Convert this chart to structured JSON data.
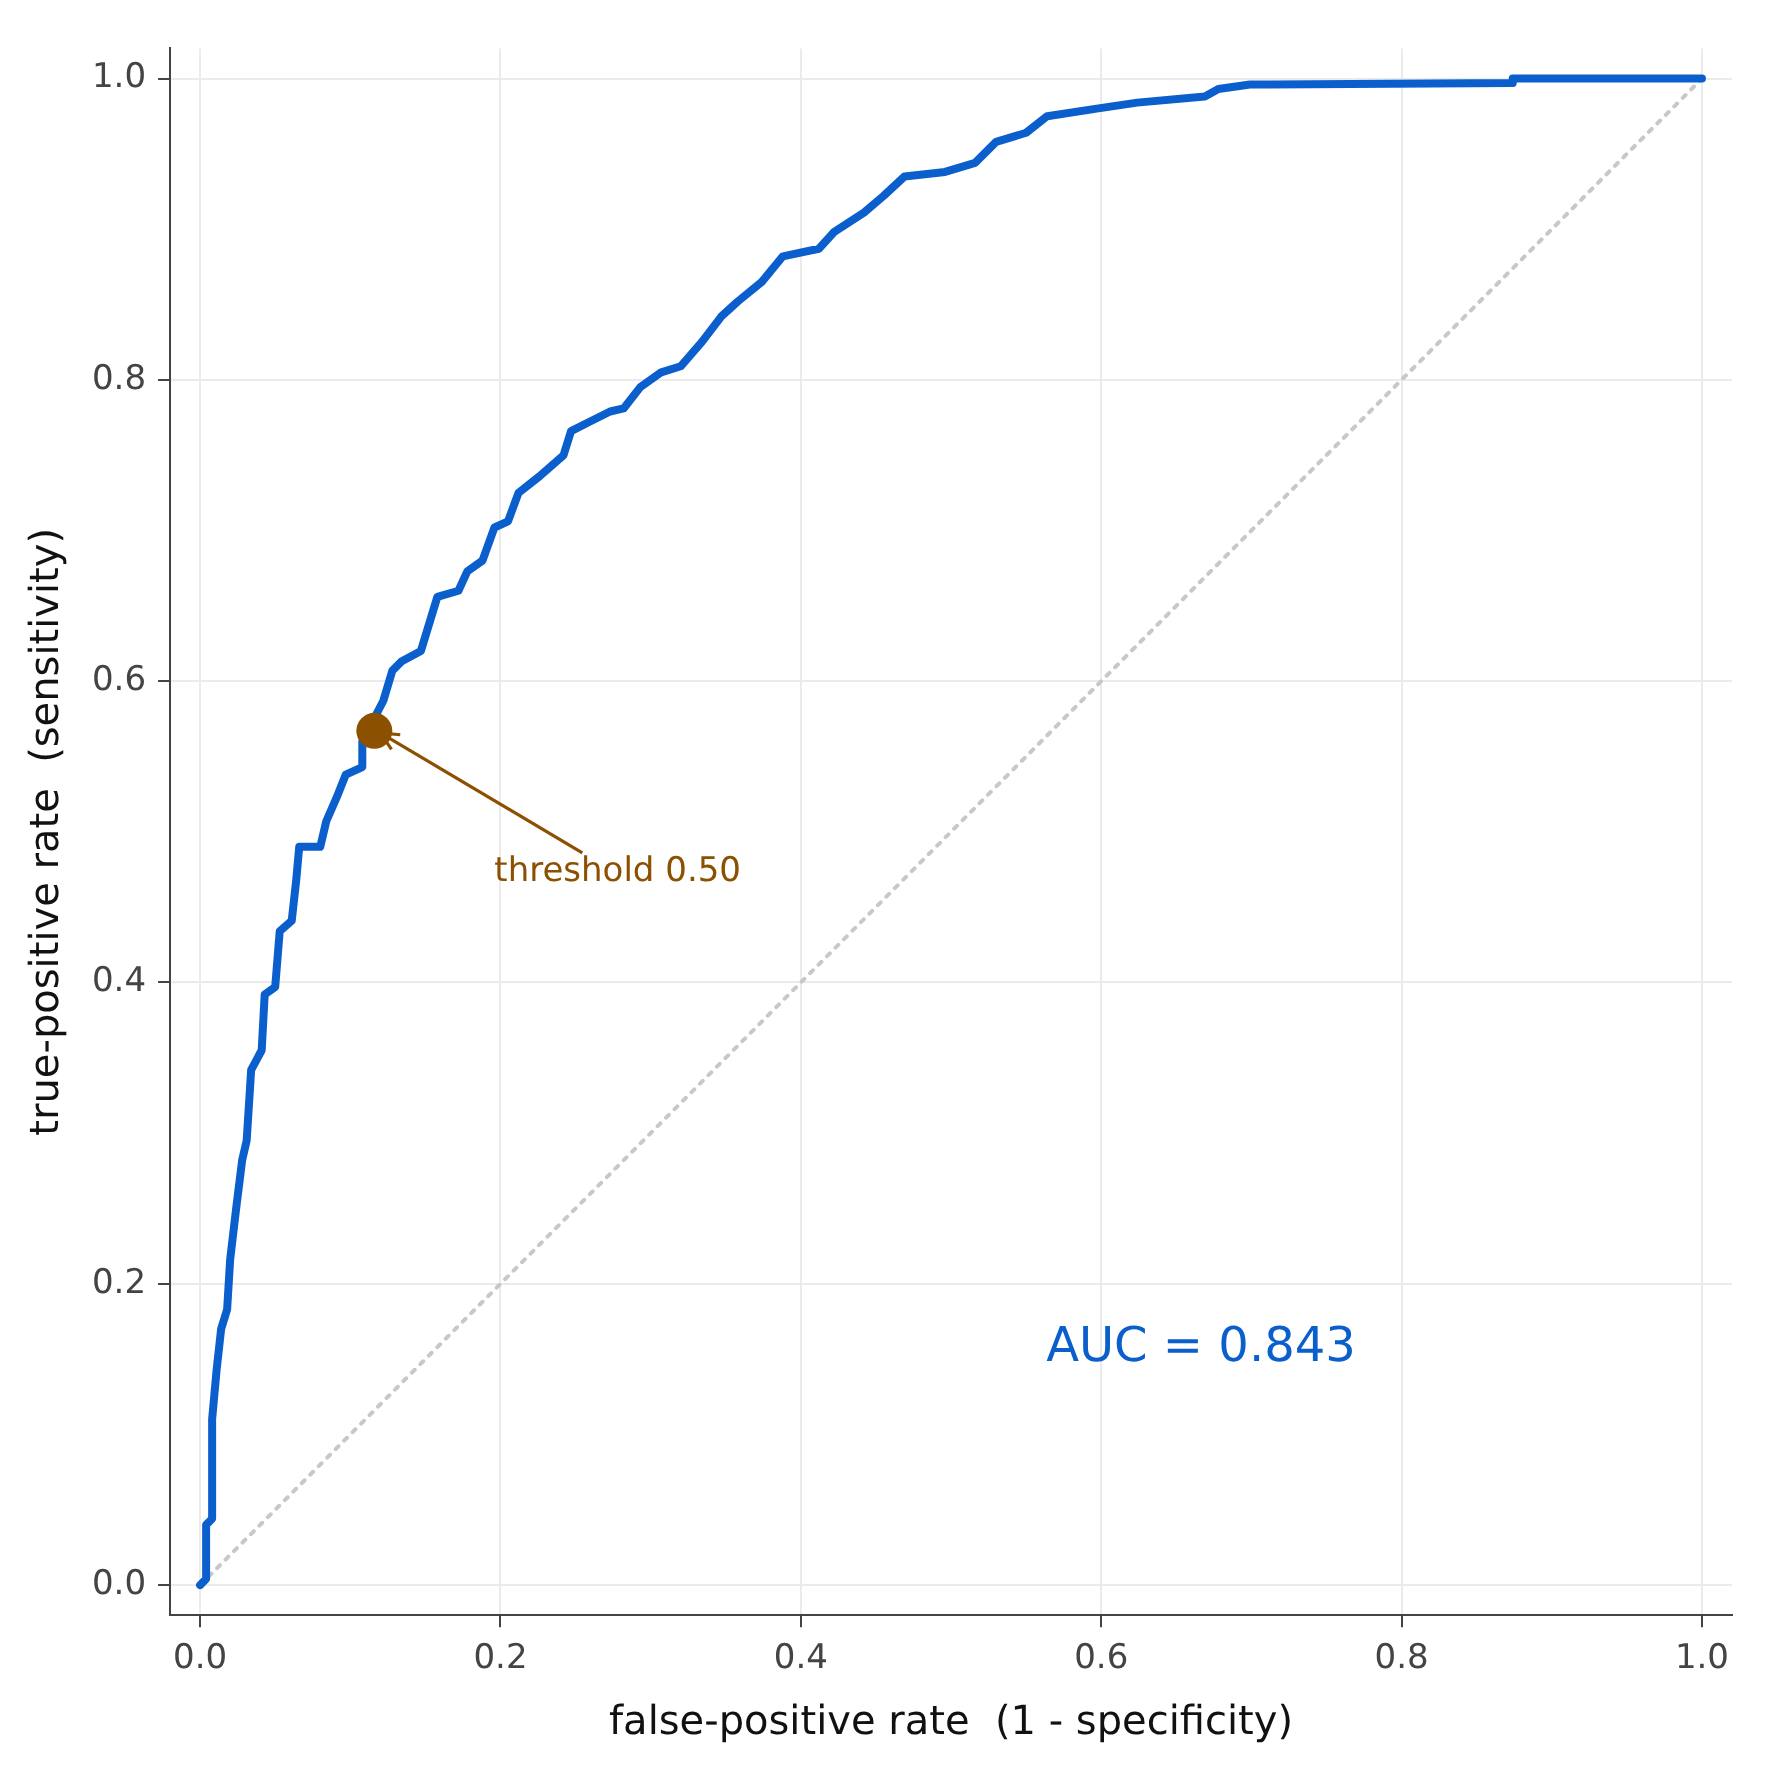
{
  "chart_data": {
    "type": "line",
    "xlabel": "false-positive rate  (1 - specificity)",
    "ylabel": "true-positive rate  (sensitivity)",
    "xlim": [
      -0.02,
      1.02
    ],
    "ylim": [
      -0.02,
      1.02
    ],
    "xticks": [
      {
        "value": 0,
        "label": "0.0"
      },
      {
        "value": 0.2,
        "label": "0.2"
      },
      {
        "value": 0.4,
        "label": "0.4"
      },
      {
        "value": 0.6,
        "label": "0.6"
      },
      {
        "value": 0.8,
        "label": "0.8"
      },
      {
        "value": 1,
        "label": "1.0"
      }
    ],
    "yticks": [
      {
        "value": 0,
        "label": "0.0"
      },
      {
        "value": 0.2,
        "label": "0.2"
      },
      {
        "value": 0.4,
        "label": "0.4"
      },
      {
        "value": 0.6,
        "label": "0.6"
      },
      {
        "value": 0.8,
        "label": "0.8"
      },
      {
        "value": 1,
        "label": "1.0"
      }
    ],
    "grid": true,
    "marker": "none",
    "series": [
      {
        "type": "line",
        "line_style": "dotted",
        "color": "#c8c8c8",
        "x": [
          0,
          1
        ],
        "values": [
          0,
          1
        ]
      },
      {
        "type": "line",
        "line_style": "solid",
        "color": "#0b5fcc",
        "x": [
          0,
          0.004,
          0.004,
          0.008,
          0.008,
          0.011,
          0.014,
          0.018,
          0.02,
          0.024,
          0.028,
          0.031,
          0.034,
          0.041,
          0.043,
          0.05,
          0.053,
          0.061,
          0.064,
          0.066,
          0.08,
          0.084,
          0.091,
          0.097,
          0.108,
          0.108,
          0.122,
          0.128,
          0.134,
          0.147,
          0.158,
          0.172,
          0.178,
          0.188,
          0.196,
          0.205,
          0.212,
          0.226,
          0.242,
          0.247,
          0.259,
          0.273,
          0.282,
          0.293,
          0.307,
          0.32,
          0.334,
          0.347,
          0.358,
          0.374,
          0.388,
          0.412,
          0.422,
          0.442,
          0.455,
          0.469,
          0.496,
          0.516,
          0.53,
          0.55,
          0.564,
          0.597,
          0.624,
          0.669,
          0.678,
          0.699,
          0.874,
          0.874,
          1
        ],
        "values": [
          0,
          0.004,
          0.04,
          0.044,
          0.11,
          0.143,
          0.17,
          0.183,
          0.216,
          0.25,
          0.282,
          0.295,
          0.342,
          0.355,
          0.392,
          0.397,
          0.434,
          0.441,
          0.468,
          0.49,
          0.49,
          0.507,
          0.523,
          0.538,
          0.543,
          0.56,
          0.587,
          0.607,
          0.613,
          0.62,
          0.656,
          0.66,
          0.673,
          0.68,
          0.702,
          0.706,
          0.725,
          0.736,
          0.75,
          0.766,
          0.772,
          0.779,
          0.781,
          0.795,
          0.805,
          0.809,
          0.825,
          0.842,
          0.852,
          0.865,
          0.882,
          0.887,
          0.898,
          0.911,
          0.922,
          0.935,
          0.938,
          0.944,
          0.958,
          0.964,
          0.975,
          0.98,
          0.984,
          0.988,
          0.993,
          0.996,
          0.997,
          1,
          1
        ]
      },
      {
        "type": "scatter",
        "marker": "circle",
        "color": "#8b5000",
        "x": [
          0.116
        ],
        "values": [
          0.567
        ]
      }
    ],
    "annotations": [
      {
        "text": "threshold 0.50",
        "x": 0.116,
        "y": 0.567
      },
      "AUC = 0.843"
    ]
  }
}
